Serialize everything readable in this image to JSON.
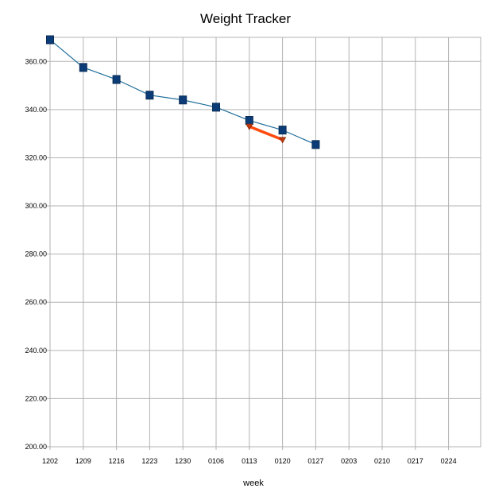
{
  "chart_data": {
    "type": "line",
    "title": "Weight Tracker",
    "xlabel": "week",
    "ylabel": "",
    "categories": [
      "1202",
      "1209",
      "1216",
      "1223",
      "1230",
      "0106",
      "0113",
      "0120",
      "0127",
      "0203",
      "0210",
      "0217",
      "0224"
    ],
    "ylim": [
      200,
      370
    ],
    "yticks": [
      "200.00",
      "220.00",
      "240.00",
      "260.00",
      "280.00",
      "300.00",
      "320.00",
      "340.00",
      "360.00"
    ],
    "grid": true,
    "series": [
      {
        "values": [
          369.0,
          357.5,
          352.5,
          346.0,
          344.0,
          341.0,
          335.5,
          331.5,
          325.5,
          null,
          null,
          null,
          null
        ],
        "line_color": "#1f6d9b",
        "marker": "square",
        "marker_color": "#0b3c77"
      },
      {
        "values": [
          null,
          null,
          null,
          null,
          null,
          null,
          333.0,
          327.5,
          null,
          null,
          null,
          null,
          null
        ],
        "line_color": "#ff4b10",
        "marker": "triangle-down",
        "marker_color": "#c33a10"
      }
    ]
  }
}
